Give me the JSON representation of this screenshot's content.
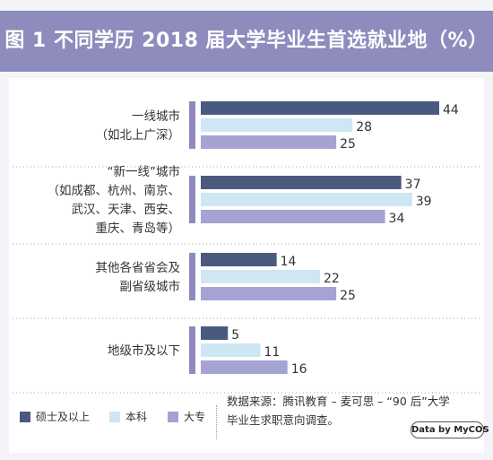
{
  "title": "图 1  不同学历 2018 届大学毕业生首选就业地（%）",
  "colors": {
    "title_band": "#8d8cbd",
    "series": [
      "#4a5a7f",
      "#cfe6f3",
      "#a4a3d3"
    ],
    "category_bar": "#8d8cbd"
  },
  "legend": [
    {
      "label": "硕士及以上",
      "color": "#4a5a7f"
    },
    {
      "label": "本科",
      "color": "#cfe6f3"
    },
    {
      "label": "大专",
      "color": "#a4a3d3"
    }
  ],
  "source": {
    "line1": "数据来源：腾讯教育 – 麦可思 – “90 后”大学",
    "line2": "毕业生求职意向调查。",
    "badge": "Data by MyCOS"
  },
  "chart_data": {
    "type": "bar",
    "orientation": "horizontal",
    "title": "图 1  不同学历 2018 届大学毕业生首选就业地（%）",
    "categories": [
      [
        "一线城市",
        "（如北上广深）"
      ],
      [
        "“新一线”城市",
        "（如成都、杭州、南京、",
        "武汉、天津、西安、",
        "重庆、青岛等）"
      ],
      [
        "其他各省省会及",
        "副省级城市"
      ],
      [
        "地级市及以下"
      ]
    ],
    "series": [
      {
        "name": "硕士及以上",
        "values": [
          44,
          37,
          14,
          5
        ]
      },
      {
        "name": "本科",
        "values": [
          28,
          39,
          22,
          11
        ]
      },
      {
        "name": "大专",
        "values": [
          25,
          34,
          25,
          16
        ]
      }
    ],
    "xlim": [
      0,
      44
    ],
    "grid": false,
    "legend_position": "bottom-left"
  }
}
